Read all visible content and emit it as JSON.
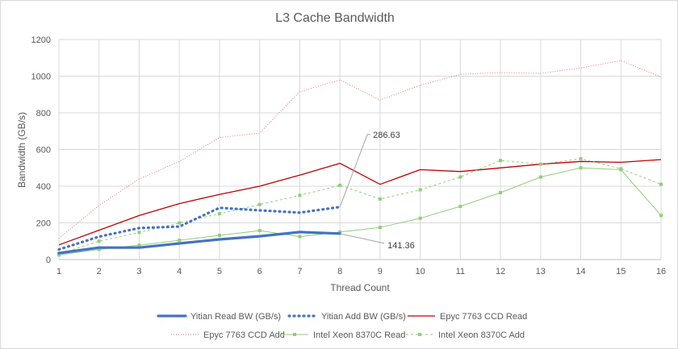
{
  "chart_data": {
    "type": "line",
    "title": "L3 Cache Bandwidth",
    "xlabel": "Thread Count",
    "ylabel": "Bandwidth (GB/s)",
    "x": [
      1,
      2,
      3,
      4,
      5,
      6,
      7,
      8,
      9,
      10,
      11,
      12,
      13,
      14,
      15,
      16
    ],
    "ylim": [
      0,
      1200
    ],
    "yticks": [
      0,
      200,
      400,
      600,
      800,
      1000,
      1200
    ],
    "grid": true,
    "legend_position": "bottom",
    "series": [
      {
        "name": "Yitian Read BW (GB/s)",
        "color": "#4472c4",
        "style": "solid-thick",
        "x": [
          1,
          2,
          3,
          4,
          5,
          6,
          7,
          8
        ],
        "values": [
          35,
          65,
          65,
          88,
          110,
          127,
          150,
          141.36
        ]
      },
      {
        "name": "Yitian Add BW (GB/s)",
        "color": "#4472c4",
        "style": "dotted-thick",
        "x": [
          1,
          2,
          3,
          4,
          5,
          6,
          7,
          8
        ],
        "values": [
          55,
          125,
          172,
          180,
          282,
          268,
          256,
          286.63
        ]
      },
      {
        "name": "Epyc 7763 CCD Read",
        "color": "#c00000",
        "style": "solid",
        "x": [
          1,
          2,
          3,
          4,
          5,
          6,
          7,
          8,
          9,
          10,
          11,
          12,
          13,
          14,
          15,
          16
        ],
        "values": [
          80,
          160,
          240,
          305,
          355,
          400,
          460,
          525,
          410,
          490,
          480,
          500,
          520,
          535,
          530,
          545
        ]
      },
      {
        "name": "Epyc 7763 CCD Add",
        "color": "#e06666",
        "style": "dotted-thin",
        "x": [
          1,
          2,
          3,
          4,
          5,
          6,
          7,
          8,
          9,
          10,
          11,
          12,
          13,
          14,
          15,
          16
        ],
        "values": [
          115,
          295,
          440,
          535,
          665,
          690,
          915,
          980,
          870,
          950,
          1010,
          1020,
          1015,
          1045,
          1085,
          995
        ]
      },
      {
        "name": "Intel Xeon 8370C Read",
        "color": "#8fce7a",
        "style": "solid-markers",
        "x": [
          1,
          2,
          3,
          4,
          5,
          6,
          7,
          8,
          9,
          10,
          11,
          12,
          13,
          14,
          15,
          16
        ],
        "values": [
          25,
          55,
          78,
          105,
          132,
          158,
          125,
          150,
          175,
          225,
          290,
          365,
          450,
          500,
          490,
          240
        ]
      },
      {
        "name": "Intel Xeon 8370C Add",
        "color": "#8fce7a",
        "style": "dashed-markers",
        "x": [
          1,
          2,
          3,
          4,
          5,
          6,
          7,
          8,
          9,
          10,
          11,
          12,
          13,
          14,
          15,
          16
        ],
        "values": [
          30,
          100,
          148,
          200,
          250,
          300,
          350,
          405,
          330,
          380,
          450,
          540,
          520,
          550,
          495,
          410
        ]
      }
    ],
    "annotations": [
      {
        "text": "286.63",
        "series": "Yitian Add BW (GB/s)",
        "x": 8
      },
      {
        "text": "141.36",
        "series": "Yitian Read BW (GB/s)",
        "x": 8
      }
    ]
  }
}
